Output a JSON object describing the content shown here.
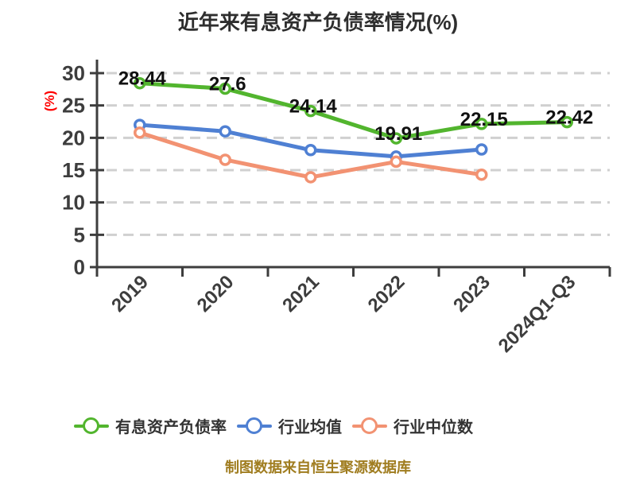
{
  "title": "近年来有息资产负债率情况(%)",
  "footer": "制图数据来自恒生聚源数据库",
  "chart_data": {
    "type": "line",
    "title": "近年来有息资产负债率情况(%)",
    "categories": [
      "2019",
      "2020",
      "2021",
      "2022",
      "2023",
      "2024Q1-Q3"
    ],
    "xlabel": "",
    "ylabel": "(%)",
    "ylim": [
      0,
      30
    ],
    "yticks": [
      0,
      5,
      10,
      15,
      20,
      25,
      30
    ],
    "grid": "horizontal-dashed",
    "legend_position": "bottom",
    "series": [
      {
        "name": "有息资产负债率",
        "color": "#52b52e",
        "values": [
          28.44,
          27.6,
          24.14,
          19.91,
          22.15,
          22.42
        ],
        "data_labels": [
          "28.44",
          "27.6",
          "24.14",
          "19.91",
          "22.15",
          "22.42"
        ]
      },
      {
        "name": "行业均值",
        "color": "#4f80d3",
        "values": [
          22.0,
          21.0,
          18.1,
          17.1,
          18.2,
          null
        ]
      },
      {
        "name": "行业中位数",
        "color": "#f29272",
        "values": [
          20.8,
          16.6,
          13.9,
          16.3,
          14.3,
          null
        ]
      }
    ],
    "colors": {
      "title": "#2e2e2e",
      "axis": "#3d3d3d",
      "tick_label": "#3d3d3d",
      "grid": "#d0d0d0",
      "data_label": "#111111",
      "ylabel": "#ff0000",
      "legend_text": "#333333",
      "footer": "#a07d20",
      "marker_fill": "#ffffff",
      "background": "#ffffff"
    }
  }
}
